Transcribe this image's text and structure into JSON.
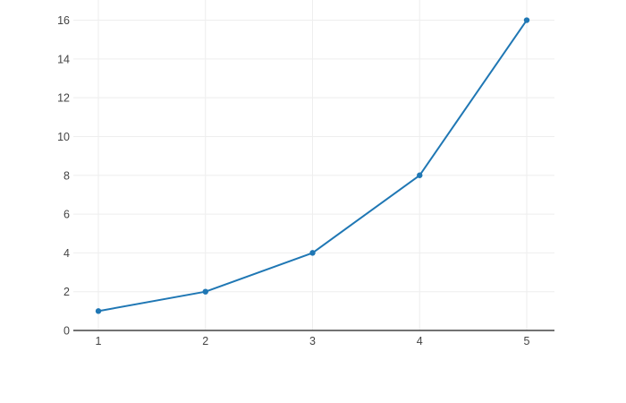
{
  "colors": {
    "background": "#ffffff",
    "line": "#1f77b4",
    "marker": "#1f77b4",
    "grid": "#eeeeee",
    "zeroline": "#444444",
    "tick_label": "#444444"
  },
  "chart_data": {
    "type": "line",
    "x": [
      1,
      2,
      3,
      4,
      5
    ],
    "y": [
      1,
      2,
      4,
      8,
      16
    ],
    "x_ticks": [
      1,
      2,
      3,
      4,
      5
    ],
    "y_ticks": [
      0,
      2,
      4,
      6,
      8,
      10,
      12,
      14,
      16
    ],
    "x_tick_labels": [
      "1",
      "2",
      "3",
      "4",
      "5"
    ],
    "y_tick_labels": [
      "0",
      "2",
      "4",
      "6",
      "8",
      "10",
      "12",
      "14",
      "16"
    ],
    "xlim": [
      0.766,
      5.259
    ],
    "ylim": [
      0,
      17.04
    ],
    "grid": true,
    "legend_position": "none",
    "marker_shape": "circle",
    "line_width": 2,
    "marker_size": 6
  }
}
